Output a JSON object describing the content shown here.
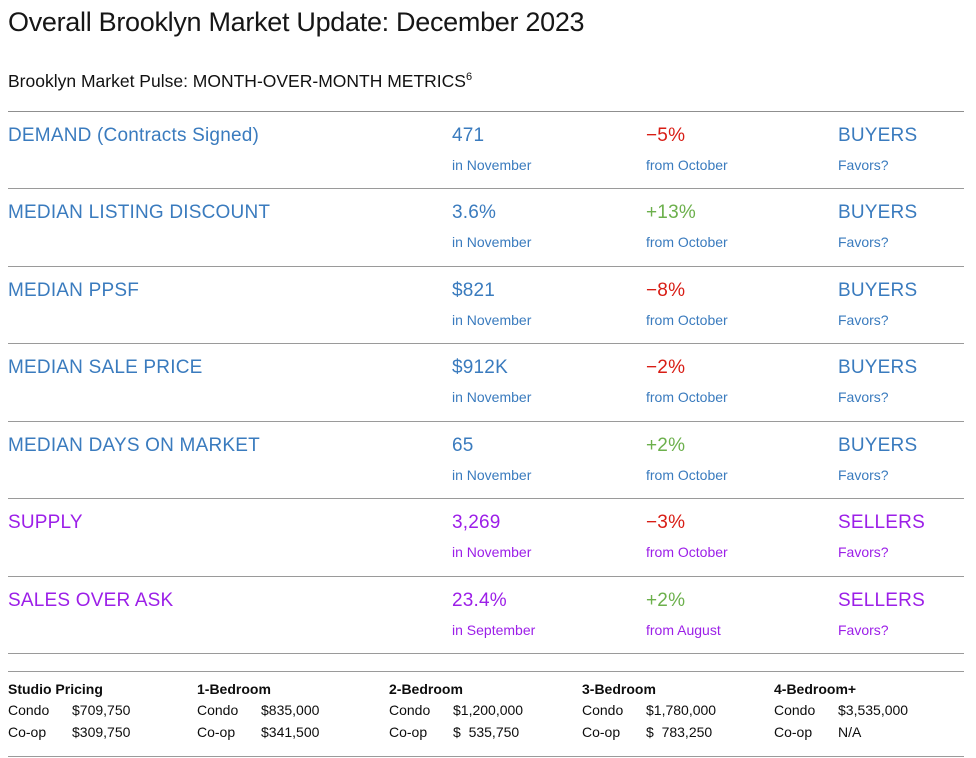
{
  "header": {
    "title": "Overall Brooklyn Market Update: December 2023",
    "subtitle": "Brooklyn Market Pulse: MONTH-OVER-MONTH METRICS",
    "subtitle_superscript": "6"
  },
  "colors": {
    "blue": "#3a7bbe",
    "purple": "#9c1fe8",
    "red": "#d81d15",
    "green": "#6cb04c",
    "divider": "#9a9a9a",
    "text": "#141414"
  },
  "metrics": {
    "rows": [
      {
        "label": "DEMAND (Contracts Signed)",
        "value": "471",
        "value_sub": "in November",
        "change": "−5%",
        "change_sub": "from October",
        "favors": "BUYERS",
        "favors_sub": "Favors?",
        "theme": "blue",
        "direction": "down"
      },
      {
        "label": "MEDIAN LISTING DISCOUNT",
        "value": "3.6%",
        "value_sub": "in November",
        "change": "+13%",
        "change_sub": "from October",
        "favors": "BUYERS",
        "favors_sub": "Favors?",
        "theme": "blue",
        "direction": "up"
      },
      {
        "label": "MEDIAN PPSF",
        "value": "$821",
        "value_sub": "in November",
        "change": "−8%",
        "change_sub": "from October",
        "favors": "BUYERS",
        "favors_sub": "Favors?",
        "theme": "blue",
        "direction": "down"
      },
      {
        "label": "MEDIAN SALE PRICE",
        "value": "$912K",
        "value_sub": "in November",
        "change": "−2%",
        "change_sub": "from October",
        "favors": "BUYERS",
        "favors_sub": "Favors?",
        "theme": "blue",
        "direction": "down"
      },
      {
        "label": "MEDIAN DAYS ON MARKET",
        "value": "65",
        "value_sub": "in November",
        "change": "+2%",
        "change_sub": "from October",
        "favors": "BUYERS",
        "favors_sub": "Favors?",
        "theme": "blue",
        "direction": "up"
      },
      {
        "label": "SUPPLY",
        "value": "3,269",
        "value_sub": "in November",
        "change": "−3%",
        "change_sub": "from October",
        "favors": "SELLERS",
        "favors_sub": "Favors?",
        "theme": "purple",
        "direction": "down"
      },
      {
        "label": "SALES OVER ASK",
        "value": "23.4%",
        "value_sub": "in September",
        "change": "+2%",
        "change_sub": "from August",
        "favors": "SELLERS",
        "favors_sub": "Favors?",
        "theme": "purple",
        "direction": "up"
      }
    ]
  },
  "pricing": {
    "columns": [
      {
        "header": "Studio Pricing",
        "rows": [
          {
            "label": "Condo",
            "value": "$709,750"
          },
          {
            "label": "Co-op",
            "value": "$309,750"
          }
        ]
      },
      {
        "header": "1-Bedroom",
        "rows": [
          {
            "label": "Condo",
            "value": "$835,000"
          },
          {
            "label": "Co-op",
            "value": "$341,500"
          }
        ]
      },
      {
        "header": "2-Bedroom",
        "rows": [
          {
            "label": "Condo",
            "value": "$1,200,000"
          },
          {
            "label": "Co-op",
            "value": "$  535,750"
          }
        ]
      },
      {
        "header": "3-Bedroom",
        "rows": [
          {
            "label": "Condo",
            "value": "$1,780,000"
          },
          {
            "label": "Co-op",
            "value": "$  783,250"
          }
        ]
      },
      {
        "header": "4-Bedroom+",
        "rows": [
          {
            "label": "Condo",
            "value": "$3,535,000"
          },
          {
            "label": "Co-op",
            "value": "N/A"
          }
        ]
      }
    ]
  }
}
